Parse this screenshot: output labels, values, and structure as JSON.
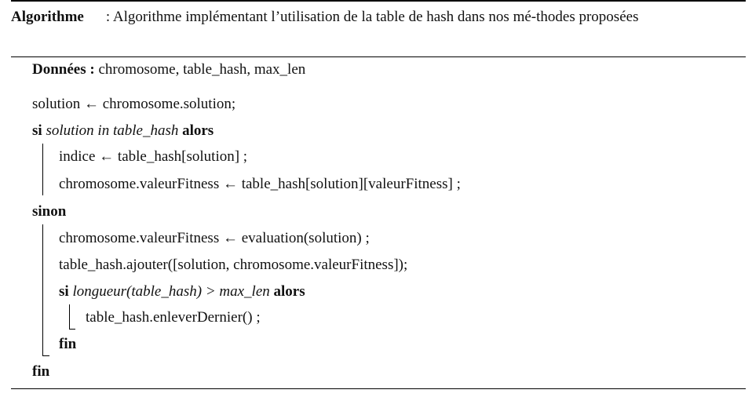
{
  "caption": {
    "label": "Algorithme",
    "text": ": Algorithme implémentant l’utilisation de la table de hash dans nos mé-thodes proposées"
  },
  "algorithm": {
    "data_keyword": "Données :",
    "data_value": "chromosome, table_hash, max_len",
    "line_solution": "solution ← chromosome.solution;",
    "if1_kw": "si",
    "if1_cond": "solution in table_hash",
    "then_kw": "alors",
    "line_indice": "indice ← table_hash[solution] ;",
    "line_fitness_lookup": "chromosome.valeurFitness ← table_hash[solution][valeurFitness] ;",
    "else_kw": "sinon",
    "line_fitness_eval": "chromosome.valeurFitness ← evaluation(solution) ;",
    "line_add": "table_hash.ajouter([solution, chromosome.valeurFitness]);",
    "if2_kw": "si",
    "if2_cond": "longueur(table_hash) > max_len",
    "then2_kw": "alors",
    "line_remove": "table_hash.enleverDernier() ;",
    "end_inner": "fin",
    "end_outer": "fin"
  }
}
